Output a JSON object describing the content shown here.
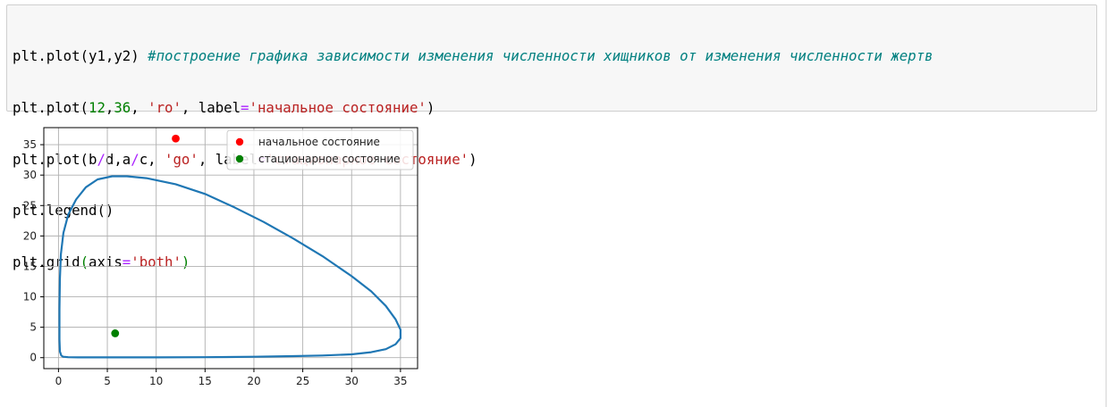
{
  "code_cell": {
    "line1": {
      "fn": "plt.plot",
      "args": "(y1,y2) ",
      "comment": "#построение графика зависимости изменения численности хищников от изменения численности жертв"
    },
    "line2": {
      "fn": "plt.plot(",
      "n1": "12",
      "comma": ",",
      "n2": "36",
      "sep": ", ",
      "s1": "'ro'",
      "kw": ", label",
      "eq": "=",
      "s2": "'начальное состояние'",
      "close": ")"
    },
    "line3": {
      "fn": "plt.plot(b",
      "op1": "/",
      "mid": "d,a",
      "op2": "/",
      "rest": "c, ",
      "s1": "'go'",
      "kw": ", label",
      "eq": "=",
      "s2": "'стационарное состояние'",
      "close": ")"
    },
    "line4": "plt.legend()",
    "line5": {
      "fn": "plt.grid",
      "open": "(",
      "kw": "axis",
      "eq": "=",
      "s": "'both'",
      "close": ")"
    }
  },
  "colors": {
    "curve": "#1f77b4",
    "start_point": "#ff0000",
    "steady_point": "#008000",
    "grid": "#b0b0b0"
  },
  "chart_data": {
    "type": "line",
    "xlim": [
      -1.5,
      36.75
    ],
    "ylim": [
      -1.8,
      37.8
    ],
    "xticks": [
      0,
      5,
      10,
      15,
      20,
      25,
      30,
      35
    ],
    "yticks": [
      0,
      5,
      10,
      15,
      20,
      25,
      30,
      35
    ],
    "grid": true,
    "legend_position": "top-right",
    "legend": [
      "начальное состояние",
      "стационарное состояние"
    ],
    "series": [
      {
        "kind": "line",
        "x": [
          0.3,
          0.15,
          0.1,
          0.1,
          0.15,
          0.25,
          0.5,
          1.0,
          1.8,
          2.8,
          4.0,
          5.5,
          7.0,
          9.0,
          12.0,
          15.0,
          18.0,
          21.0,
          24.0,
          27.0,
          30.0,
          32.0,
          33.5,
          34.5,
          35.0,
          35.0,
          34.5,
          33.5,
          32.0,
          30.0,
          27.0,
          24.0,
          20.0,
          15.0,
          10.0,
          5.0,
          2.0,
          1.0,
          0.5,
          0.3
        ],
        "y": [
          0.3,
          1.0,
          3.0,
          8.0,
          13.0,
          17.0,
          20.5,
          23.5,
          26.0,
          28.0,
          29.3,
          29.8,
          29.8,
          29.5,
          28.5,
          26.9,
          24.7,
          22.3,
          19.6,
          16.7,
          13.4,
          10.9,
          8.5,
          6.3,
          4.6,
          3.2,
          2.2,
          1.4,
          0.9,
          0.55,
          0.35,
          0.25,
          0.15,
          0.08,
          0.05,
          0.05,
          0.05,
          0.08,
          0.15,
          0.3
        ]
      },
      {
        "name": "начальное состояние",
        "kind": "point",
        "x": [
          12
        ],
        "y": [
          36
        ]
      },
      {
        "name": "стационарное состояние",
        "kind": "point",
        "x": [
          5.8
        ],
        "y": [
          4
        ]
      }
    ]
  }
}
